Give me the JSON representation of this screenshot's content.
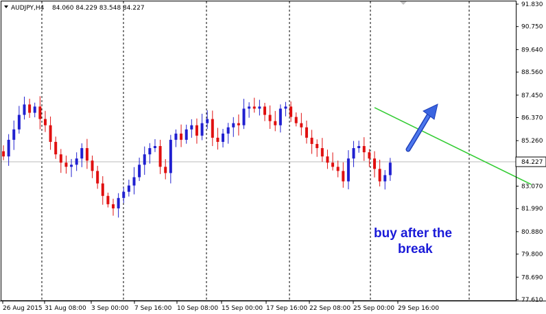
{
  "header": {
    "symbol": "AUDJPY,H4",
    "ohlc": "84.060 84.229 83.548 84.227"
  },
  "chart_data": {
    "type": "candlestick",
    "symbol": "AUDJPY",
    "timeframe": "H4",
    "y_ticks": [
      "91.830",
      "90.750",
      "89.640",
      "88.560",
      "87.450",
      "86.370",
      "85.260",
      "84.227",
      "83.070",
      "81.990",
      "80.880",
      "79.800",
      "78.690",
      "77.610"
    ],
    "ylim": [
      77.61,
      91.83
    ],
    "current_price": "84.227",
    "x_ticks": [
      "26 Aug 2015",
      "31 Aug 08:00",
      "3 Sep 00:00",
      "7 Sep 16:00",
      "10 Sep 08:00",
      "15 Sep 00:00",
      "17 Sep 16:00",
      "22 Sep 08:00",
      "25 Sep 00:00",
      "29 Sep 16:00"
    ],
    "closes": [
      84.5,
      85.3,
      85.8,
      86.5,
      87.0,
      86.6,
      86.9,
      86.3,
      86.0,
      85.2,
      84.6,
      84.2,
      84.0,
      84.1,
      84.4,
      84.9,
      84.3,
      83.8,
      83.2,
      82.6,
      82.2,
      82.0,
      82.5,
      82.8,
      83.1,
      83.5,
      84.1,
      84.6,
      84.9,
      85.0,
      84.0,
      83.7,
      85.3,
      85.6,
      85.3,
      85.8,
      86.0,
      85.5,
      86.1,
      86.3,
      85.4,
      85.2,
      85.6,
      85.9,
      86.1,
      86.0,
      86.8,
      86.9,
      86.8,
      86.9,
      86.5,
      86.2,
      86.0,
      86.8,
      86.9,
      86.4,
      86.1,
      85.9,
      85.4,
      85.1,
      84.9,
      84.5,
      84.2,
      84.0,
      83.8,
      83.3,
      84.4,
      84.9,
      85.0,
      84.7,
      84.4,
      83.9,
      83.3,
      83.6,
      84.2
    ],
    "trendline": {
      "from": [
        71,
        86.85
      ],
      "to": [
        101,
        83.15
      ],
      "color": "#33cc33"
    },
    "annotation_arrow_color": "#2a4fd6"
  },
  "annotation": {
    "line1": "buy after the",
    "line2": "break"
  }
}
